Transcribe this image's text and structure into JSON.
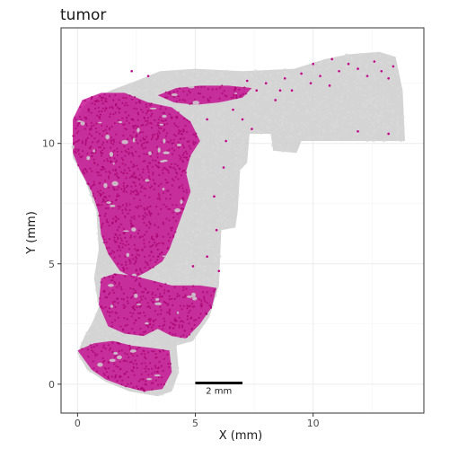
{
  "chart_data": {
    "type": "scatter",
    "title": "tumor",
    "xlabel": "X (mm)",
    "ylabel": "Y (mm)",
    "xlim": [
      -0.7,
      14.7
    ],
    "ylim": [
      -1.2,
      14.8
    ],
    "x_ticks": [
      0,
      5,
      10
    ],
    "y_ticks": [
      0,
      5,
      10
    ],
    "grid": true,
    "legend": "none",
    "colors": {
      "tissue": "#cfcfcf",
      "tumor": "#c2008a",
      "panel_border": "#333333",
      "grid": "#ebebeb"
    },
    "scale_bar": {
      "label": "2 mm",
      "x_start": 5,
      "x_end": 7,
      "y": 0.05
    },
    "series": [
      {
        "role": "tissue",
        "regions": [
          [
            [
              0.0,
              1.3
            ],
            [
              0.4,
              0.6
            ],
            [
              1.2,
              0.1
            ],
            [
              2.2,
              -0.3
            ],
            [
              3.4,
              -0.5
            ],
            [
              4.0,
              -0.3
            ],
            [
              4.3,
              0.5
            ],
            [
              4.2,
              1.6
            ],
            [
              4.9,
              1.8
            ],
            [
              5.6,
              2.8
            ],
            [
              6.0,
              4.1
            ],
            [
              6.1,
              6.4
            ],
            [
              6.7,
              6.5
            ],
            [
              6.8,
              7.2
            ],
            [
              6.9,
              8.9
            ],
            [
              7.2,
              9.2
            ],
            [
              7.3,
              10.4
            ],
            [
              8.2,
              10.4
            ],
            [
              8.3,
              9.7
            ],
            [
              9.3,
              9.6
            ],
            [
              9.5,
              10.1
            ],
            [
              13.9,
              10.1
            ],
            [
              13.8,
              12.2
            ],
            [
              13.5,
              13.6
            ],
            [
              12.8,
              13.8
            ],
            [
              11.5,
              13.7
            ],
            [
              10.5,
              13.5
            ],
            [
              9.2,
              13.1
            ],
            [
              7.0,
              13.0
            ],
            [
              5.0,
              13.1
            ],
            [
              3.5,
              13.0
            ],
            [
              2.5,
              12.6
            ],
            [
              1.4,
              12.2
            ],
            [
              0.4,
              11.7
            ],
            [
              -0.2,
              10.9
            ],
            [
              -0.2,
              9.4
            ],
            [
              0.3,
              8.5
            ],
            [
              0.8,
              7.2
            ],
            [
              0.9,
              5.6
            ],
            [
              0.7,
              4.4
            ],
            [
              0.9,
              3.2
            ],
            [
              0.6,
              2.5
            ],
            [
              0.3,
              2.0
            ],
            [
              0.0,
              1.3
            ]
          ]
        ]
      },
      {
        "role": "tumor",
        "regions": [
          [
            [
              -0.2,
              11.0
            ],
            [
              0.2,
              11.8
            ],
            [
              1.0,
              12.1
            ],
            [
              2.0,
              12.1
            ],
            [
              3.0,
              11.7
            ],
            [
              4.0,
              11.5
            ],
            [
              4.8,
              10.9
            ],
            [
              5.2,
              10.1
            ],
            [
              4.8,
              9.5
            ],
            [
              4.6,
              8.8
            ],
            [
              4.8,
              8.0
            ],
            [
              4.5,
              7.2
            ],
            [
              4.2,
              6.4
            ],
            [
              3.9,
              5.6
            ],
            [
              3.6,
              5.1
            ],
            [
              3.0,
              4.7
            ],
            [
              2.4,
              4.4
            ],
            [
              1.8,
              4.7
            ],
            [
              1.3,
              5.4
            ],
            [
              1.0,
              6.2
            ],
            [
              0.9,
              7.1
            ],
            [
              0.6,
              8.0
            ],
            [
              0.1,
              8.9
            ],
            [
              -0.2,
              9.6
            ],
            [
              -0.2,
              11.0
            ]
          ],
          [
            [
              1.0,
              4.4
            ],
            [
              1.6,
              4.6
            ],
            [
              2.4,
              4.5
            ],
            [
              3.2,
              4.3
            ],
            [
              4.0,
              4.1
            ],
            [
              4.6,
              4.1
            ],
            [
              5.2,
              4.1
            ],
            [
              5.9,
              4.0
            ],
            [
              5.7,
              3.2
            ],
            [
              5.2,
              2.5
            ],
            [
              4.6,
              1.9
            ],
            [
              4.0,
              2.0
            ],
            [
              3.4,
              2.3
            ],
            [
              2.8,
              2.0
            ],
            [
              2.0,
              2.1
            ],
            [
              1.3,
              2.4
            ],
            [
              0.9,
              3.3
            ],
            [
              1.0,
              4.4
            ]
          ],
          [
            [
              0.0,
              1.4
            ],
            [
              0.7,
              1.7
            ],
            [
              1.5,
              1.8
            ],
            [
              2.3,
              1.6
            ],
            [
              3.2,
              1.5
            ],
            [
              3.9,
              1.4
            ],
            [
              4.0,
              0.5
            ],
            [
              3.6,
              -0.2
            ],
            [
              2.8,
              -0.3
            ],
            [
              2.0,
              -0.1
            ],
            [
              1.2,
              0.2
            ],
            [
              0.6,
              0.6
            ],
            [
              0.0,
              1.4
            ]
          ],
          [
            [
              3.4,
              12.0
            ],
            [
              4.2,
              12.3
            ],
            [
              5.2,
              12.4
            ],
            [
              6.4,
              12.4
            ],
            [
              7.4,
              12.3
            ],
            [
              7.0,
              11.9
            ],
            [
              6.0,
              11.7
            ],
            [
              5.0,
              11.6
            ],
            [
              4.1,
              11.7
            ],
            [
              3.4,
              12.0
            ]
          ]
        ]
      }
    ],
    "scattered_tumor_points": [
      [
        7.2,
        12.6
      ],
      [
        7.6,
        12.2
      ],
      [
        8.0,
        12.5
      ],
      [
        8.4,
        11.8
      ],
      [
        8.8,
        12.7
      ],
      [
        9.1,
        12.2
      ],
      [
        9.5,
        12.9
      ],
      [
        9.9,
        12.5
      ],
      [
        10.3,
        12.8
      ],
      [
        10.7,
        12.4
      ],
      [
        11.1,
        13.0
      ],
      [
        11.5,
        13.3
      ],
      [
        11.9,
        13.1
      ],
      [
        12.3,
        12.8
      ],
      [
        12.6,
        13.4
      ],
      [
        12.9,
        13.0
      ],
      [
        13.2,
        12.7
      ],
      [
        13.4,
        13.2
      ],
      [
        10.0,
        13.3
      ],
      [
        10.8,
        13.5
      ],
      [
        6.6,
        11.4
      ],
      [
        7.0,
        11.0
      ],
      [
        5.5,
        11.0
      ],
      [
        8.6,
        12.2
      ],
      [
        11.9,
        10.5
      ],
      [
        13.2,
        10.4
      ],
      [
        6.2,
        9.0
      ],
      [
        5.8,
        7.8
      ],
      [
        6.3,
        10.1
      ],
      [
        7.4,
        10.6
      ],
      [
        5.9,
        6.4
      ],
      [
        5.5,
        5.3
      ],
      [
        4.9,
        4.9
      ],
      [
        6.0,
        4.7
      ],
      [
        2.3,
        13.0
      ],
      [
        3.0,
        12.8
      ]
    ]
  }
}
